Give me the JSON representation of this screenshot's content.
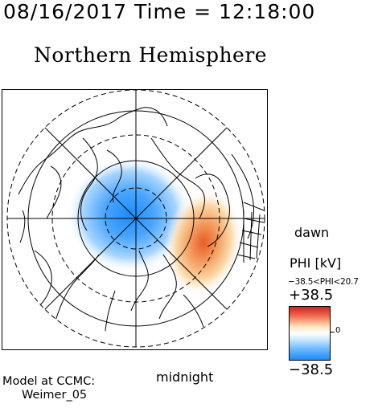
{
  "header": {
    "timestamp": "08/16/2017 Time = 12:18:00",
    "title": "Northern Hemisphere"
  },
  "map": {
    "labels": {
      "dawn": "dawn",
      "midnight": "midnight"
    },
    "colors": {
      "negative": "#1a8cff",
      "positive": "#e85c28",
      "grid": "#000000"
    }
  },
  "colorbar": {
    "title": "PHI [kV]",
    "range": "−38.5<PHI<20.7",
    "max_label": "+38.5",
    "zero_label": "0",
    "min_label": "−38.5"
  },
  "credits": {
    "line1": "Model at CCMC:",
    "line2": "Weimer_05"
  }
}
